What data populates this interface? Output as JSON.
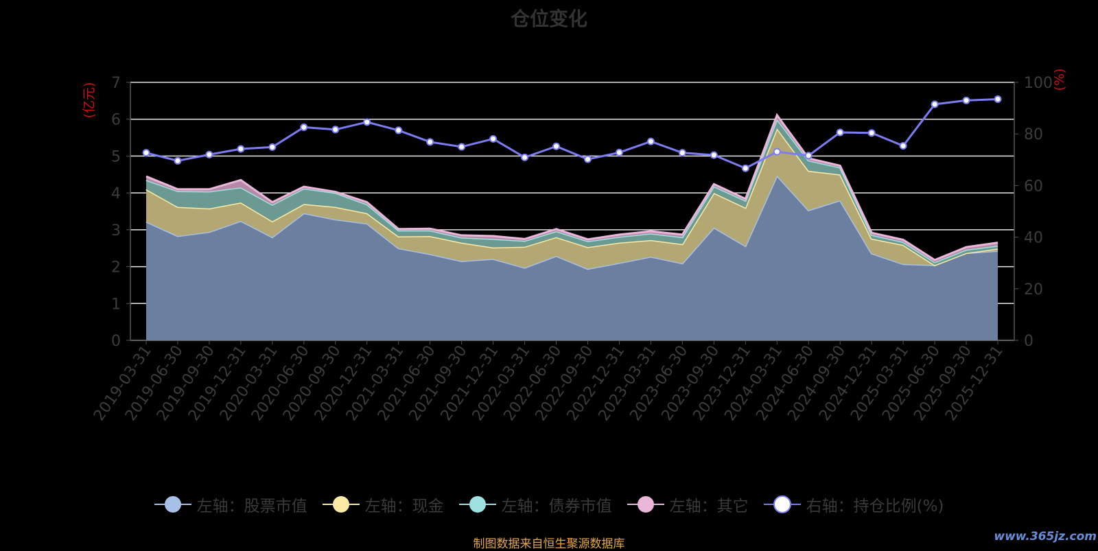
{
  "title": "仓位变化",
  "left_axis_label": "(亿元)",
  "right_axis_label": "(%)",
  "source_note": "制图数据来自恒生聚源数据库",
  "watermark": "www.365jz.com",
  "colors": {
    "stock": "#a7c0e8",
    "cash": "#fbeaa6",
    "bond": "#9fe0e0",
    "other": "#eab6da",
    "ratio": "#7b7cf2",
    "axis_label_red": "#cc1111",
    "grid": "#e8e8e8",
    "tick_text": "#3c3c3c"
  },
  "chart_data": {
    "type": "area",
    "x": [
      "2019-03-31",
      "2019-06-30",
      "2019-09-30",
      "2019-12-31",
      "2020-03-31",
      "2020-06-30",
      "2020-09-30",
      "2020-12-31",
      "2021-03-31",
      "2021-06-30",
      "2021-09-30",
      "2021-12-31",
      "2022-03-31",
      "2022-06-30",
      "2022-09-30",
      "2022-12-31",
      "2023-03-31",
      "2023-06-30",
      "2023-09-30",
      "2023-12-31",
      "2024-03-31",
      "2024-06-30",
      "2024-09-30",
      "2024-12-31",
      "2025-03-31",
      "2025-06-30",
      "2025-09-30",
      "2025-12-31"
    ],
    "ylim_left": [
      0,
      7
    ],
    "yticks_left": [
      0,
      1,
      2,
      3,
      4,
      5,
      6,
      7
    ],
    "ylim_right": [
      0,
      100
    ],
    "yticks_right": [
      0,
      20,
      40,
      60,
      80,
      100
    ],
    "grid": true,
    "legend_position": "bottom",
    "stacked_series": [
      {
        "name": "左轴：股票市值",
        "key": "stock",
        "values": [
          3.22,
          2.83,
          2.94,
          3.24,
          2.8,
          3.45,
          3.28,
          3.17,
          2.5,
          2.34,
          2.15,
          2.21,
          1.97,
          2.29,
          1.94,
          2.1,
          2.27,
          2.09,
          3.06,
          2.56,
          4.47,
          3.53,
          3.8,
          2.36,
          2.07,
          2.04,
          2.37,
          2.43
        ]
      },
      {
        "name": "左轴：现金",
        "key": "cash",
        "values": [
          0.88,
          0.79,
          0.64,
          0.5,
          0.43,
          0.25,
          0.34,
          0.28,
          0.32,
          0.49,
          0.5,
          0.31,
          0.57,
          0.51,
          0.59,
          0.55,
          0.45,
          0.52,
          0.94,
          1.04,
          1.28,
          1.07,
          0.7,
          0.4,
          0.52,
          0.0,
          0.0,
          0.06
        ]
      },
      {
        "name": "左轴：债券市值",
        "key": "bond",
        "values": [
          0.25,
          0.43,
          0.46,
          0.41,
          0.45,
          0.42,
          0.38,
          0.24,
          0.16,
          0.15,
          0.14,
          0.23,
          0.16,
          0.16,
          0.16,
          0.16,
          0.18,
          0.19,
          0.18,
          0.19,
          0.25,
          0.28,
          0.19,
          0.1,
          0.08,
          0.08,
          0.09,
          0.08
        ]
      },
      {
        "name": "左轴：其它",
        "key": "other",
        "values": [
          0.1,
          0.05,
          0.06,
          0.2,
          0.07,
          0.05,
          0.03,
          0.06,
          0.04,
          0.05,
          0.06,
          0.08,
          0.05,
          0.06,
          0.05,
          0.06,
          0.06,
          0.07,
          0.06,
          0.05,
          0.11,
          0.06,
          0.05,
          0.06,
          0.06,
          0.06,
          0.07,
          0.08
        ]
      }
    ],
    "line_series": {
      "name": "右轴：持仓比例(%)",
      "key": "ratio",
      "axis": "right",
      "values": [
        72.7,
        69.6,
        72.0,
        74.2,
        74.9,
        82.6,
        81.7,
        84.6,
        81.4,
        76.9,
        75.0,
        78.1,
        70.9,
        75.2,
        70.2,
        72.8,
        77.1,
        72.7,
        71.8,
        66.7,
        73.1,
        71.6,
        80.6,
        80.4,
        75.4,
        91.5,
        93.0,
        93.5
      ]
    }
  }
}
